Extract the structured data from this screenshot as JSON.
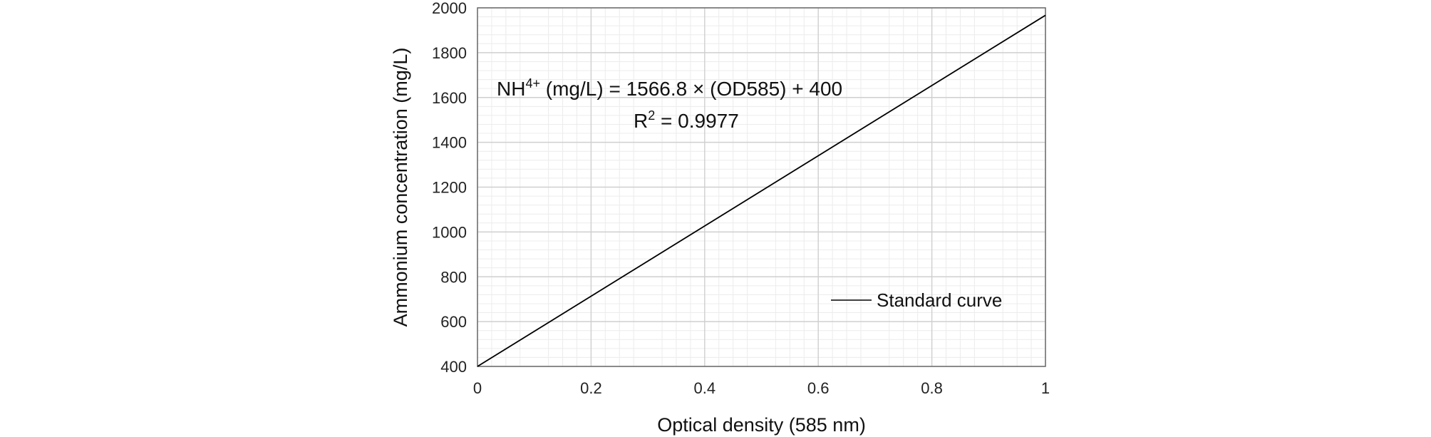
{
  "chart_data": {
    "type": "line",
    "title": "",
    "xlabel": "Optical density (585 nm)",
    "ylabel": "Ammonium  concentration (mg/L)",
    "xlim": [
      0,
      1
    ],
    "ylim": [
      400,
      2000
    ],
    "x_ticks": [
      "0",
      "0.2",
      "0.4",
      "0.6",
      "0.8",
      "1"
    ],
    "y_ticks": [
      "400",
      "600",
      "800",
      "1000",
      "1200",
      "1400",
      "1600",
      "1800",
      "2000"
    ],
    "grid": true,
    "legend_position": "bottom-right",
    "series": [
      {
        "name": "Standard curve",
        "x": [
          0,
          1
        ],
        "y": [
          400,
          1966.8
        ],
        "color": "#000000"
      }
    ],
    "annotations": {
      "equation_prefix": "NH",
      "equation_superscript": "4+",
      "equation_rest": " (mg/L) = 1566.8  × (OD585) + 400",
      "r2_prefix": "R",
      "r2_superscript": "2",
      "r2_rest": " = 0.9977"
    }
  }
}
